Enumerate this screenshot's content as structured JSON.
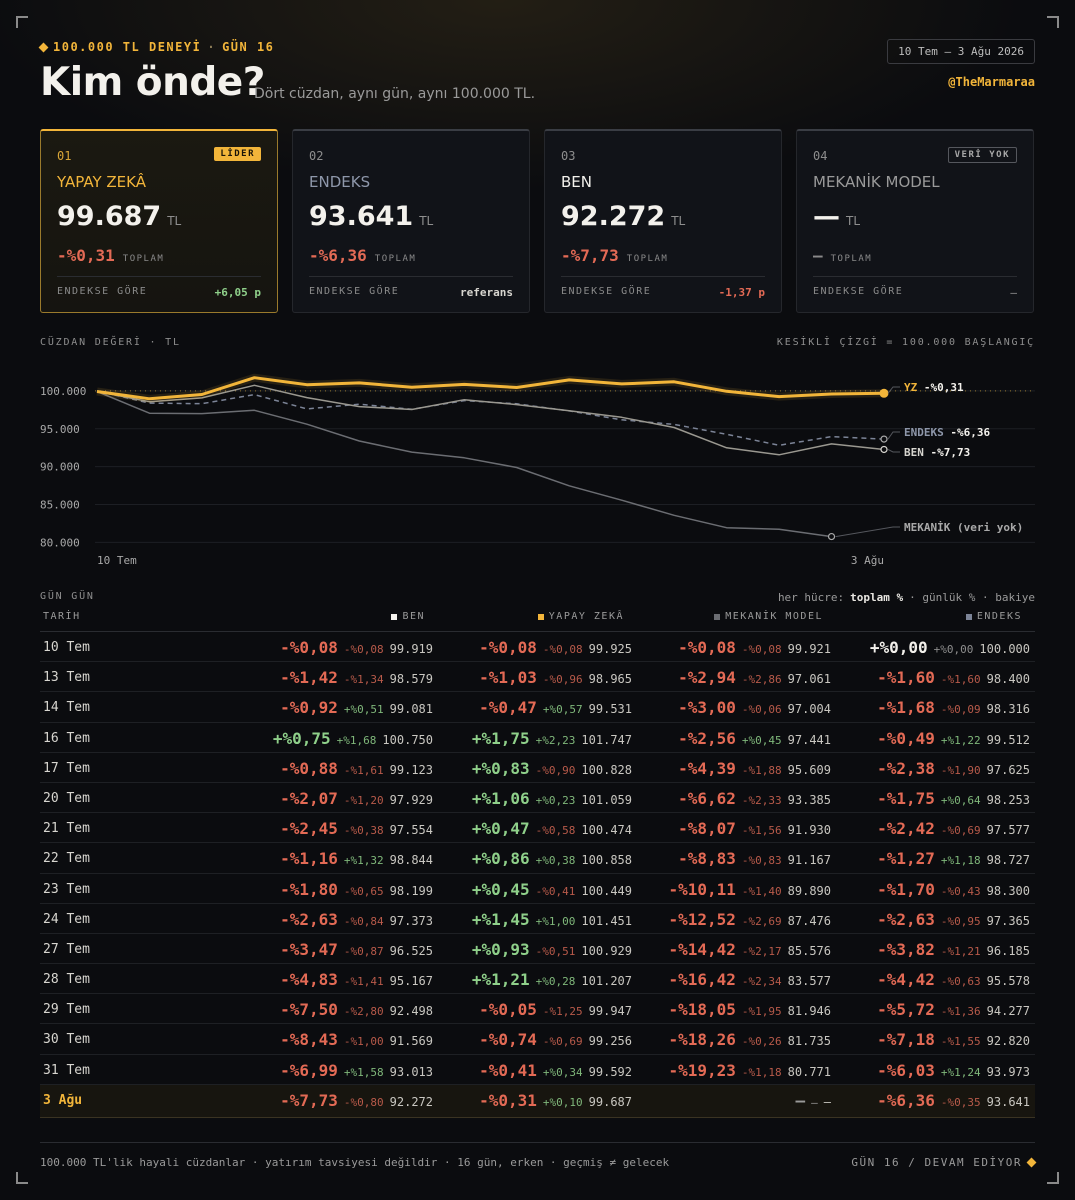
{
  "header": {
    "kicker": "100.000 TL DENEYİ",
    "kicker_sep": "·",
    "kicker_day": "GÜN 16",
    "title": "Kim önde?",
    "subtitle": "Dört cüzdan, aynı gün, aynı 100.000 TL.",
    "date_range": "10 Tem – 3 Ağu 2026",
    "handle": "@TheMarmaraa"
  },
  "colors": {
    "gold": "#f2b53a",
    "negative": "#e36a55",
    "positive": "#8fd08a",
    "index": "#7c8497",
    "me": "#d8d6d0",
    "mech": "#6b6d72"
  },
  "cards": [
    {
      "num": "01",
      "badge": "LİDER",
      "name": "YAPAY ZEKÂ",
      "value": "99.687",
      "unit": "TL",
      "pct": "-%0,31",
      "pct_label": "TOPLAM",
      "vs_label": "ENDEKSE GÖRE",
      "vs_value": "+6,05 p"
    },
    {
      "num": "02",
      "badge": "",
      "name": "ENDEKS",
      "value": "93.641",
      "unit": "TL",
      "pct": "-%6,36",
      "pct_label": "TOPLAM",
      "vs_label": "ENDEKSE GÖRE",
      "vs_value": "referans"
    },
    {
      "num": "03",
      "badge": "",
      "name": "BEN",
      "value": "92.272",
      "unit": "TL",
      "pct": "-%7,73",
      "pct_label": "TOPLAM",
      "vs_label": "ENDEKSE GÖRE",
      "vs_value": "-1,37 p"
    },
    {
      "num": "04",
      "badge": "VERİ YOK",
      "name": "MEKANİK MODEL",
      "value": "—",
      "unit": "TL",
      "pct": "—",
      "pct_label": "TOPLAM",
      "vs_label": "ENDEKSE GÖRE",
      "vs_value": "—"
    }
  ],
  "chart_section": {
    "label": "CÜZDAN DEĞERİ · TL",
    "note": "KESİKLİ ÇİZGİ = 100.000 BAŞLANGIÇ"
  },
  "chart_data": {
    "type": "line",
    "x": [
      "10 Tem",
      "13 Tem",
      "14 Tem",
      "16 Tem",
      "17 Tem",
      "20 Tem",
      "21 Tem",
      "22 Tem",
      "23 Tem",
      "24 Tem",
      "27 Tem",
      "28 Tem",
      "29 Tem",
      "30 Tem",
      "31 Tem",
      "3 Ağu"
    ],
    "x_tick_labels": [
      "10 Tem",
      "3 Ağu"
    ],
    "y_ticks": [
      "100.000",
      "95.000",
      "90.000",
      "85.000",
      "80.000"
    ],
    "y_tick_values": [
      100000,
      95000,
      90000,
      85000,
      80000
    ],
    "ylim": [
      79000,
      102500
    ],
    "baseline": 100000,
    "series": [
      {
        "key": "yz",
        "name": "YZ",
        "end_label": "-%0,31",
        "values": [
          99925,
          98965,
          99531,
          101747,
          100828,
          101059,
          100474,
          100858,
          100449,
          101451,
          100929,
          101207,
          99947,
          99256,
          99592,
          99687
        ]
      },
      {
        "key": "endeks",
        "name": "ENDEKS",
        "end_label": "-%6,36",
        "values": [
          100000,
          98400,
          98316,
          99512,
          97625,
          98253,
          97577,
          98727,
          98300,
          97365,
          96185,
          95578,
          94277,
          92820,
          93973,
          93641
        ]
      },
      {
        "key": "ben",
        "name": "BEN",
        "end_label": "-%7,73",
        "values": [
          99919,
          98579,
          99081,
          100750,
          99123,
          97929,
          97554,
          98844,
          98199,
          97373,
          96525,
          95167,
          92498,
          91569,
          93013,
          92272
        ]
      },
      {
        "key": "mekanik",
        "name": "MEKANİK",
        "end_label": "(veri yok)",
        "values": [
          99921,
          97061,
          97004,
          97441,
          95609,
          93385,
          91930,
          91167,
          89890,
          87476,
          85576,
          83577,
          81946,
          81735,
          80771,
          null
        ]
      }
    ]
  },
  "table": {
    "section_label": "GÜN GÜN",
    "legend_prefix": "her hücre:",
    "legend_total": "toplam %",
    "legend_rest": "· günlük % · bakiye",
    "columns": [
      "TARİH",
      "BEN",
      "YAPAY ZEKÂ",
      "MEKANİK MODEL",
      "ENDEKS"
    ],
    "rows": [
      {
        "date": "10 Tem",
        "cells": [
          [
            "-%0,08",
            "-%0,08",
            "99.919"
          ],
          [
            "-%0,08",
            "-%0,08",
            "99.925"
          ],
          [
            "-%0,08",
            "-%0,08",
            "99.921"
          ],
          [
            "+%0,00",
            "+%0,00",
            "100.000"
          ]
        ]
      },
      {
        "date": "13 Tem",
        "cells": [
          [
            "-%1,42",
            "-%1,34",
            "98.579"
          ],
          [
            "-%1,03",
            "-%0,96",
            "98.965"
          ],
          [
            "-%2,94",
            "-%2,86",
            "97.061"
          ],
          [
            "-%1,60",
            "-%1,60",
            "98.400"
          ]
        ]
      },
      {
        "date": "14 Tem",
        "cells": [
          [
            "-%0,92",
            "+%0,51",
            "99.081"
          ],
          [
            "-%0,47",
            "+%0,57",
            "99.531"
          ],
          [
            "-%3,00",
            "-%0,06",
            "97.004"
          ],
          [
            "-%1,68",
            "-%0,09",
            "98.316"
          ]
        ]
      },
      {
        "date": "16 Tem",
        "cells": [
          [
            "+%0,75",
            "+%1,68",
            "100.750"
          ],
          [
            "+%1,75",
            "+%2,23",
            "101.747"
          ],
          [
            "-%2,56",
            "+%0,45",
            "97.441"
          ],
          [
            "-%0,49",
            "+%1,22",
            "99.512"
          ]
        ]
      },
      {
        "date": "17 Tem",
        "cells": [
          [
            "-%0,88",
            "-%1,61",
            "99.123"
          ],
          [
            "+%0,83",
            "-%0,90",
            "100.828"
          ],
          [
            "-%4,39",
            "-%1,88",
            "95.609"
          ],
          [
            "-%2,38",
            "-%1,90",
            "97.625"
          ]
        ]
      },
      {
        "date": "20 Tem",
        "cells": [
          [
            "-%2,07",
            "-%1,20",
            "97.929"
          ],
          [
            "+%1,06",
            "+%0,23",
            "101.059"
          ],
          [
            "-%6,62",
            "-%2,33",
            "93.385"
          ],
          [
            "-%1,75",
            "+%0,64",
            "98.253"
          ]
        ]
      },
      {
        "date": "21 Tem",
        "cells": [
          [
            "-%2,45",
            "-%0,38",
            "97.554"
          ],
          [
            "+%0,47",
            "-%0,58",
            "100.474"
          ],
          [
            "-%8,07",
            "-%1,56",
            "91.930"
          ],
          [
            "-%2,42",
            "-%0,69",
            "97.577"
          ]
        ]
      },
      {
        "date": "22 Tem",
        "cells": [
          [
            "-%1,16",
            "+%1,32",
            "98.844"
          ],
          [
            "+%0,86",
            "+%0,38",
            "100.858"
          ],
          [
            "-%8,83",
            "-%0,83",
            "91.167"
          ],
          [
            "-%1,27",
            "+%1,18",
            "98.727"
          ]
        ]
      },
      {
        "date": "23 Tem",
        "cells": [
          [
            "-%1,80",
            "-%0,65",
            "98.199"
          ],
          [
            "+%0,45",
            "-%0,41",
            "100.449"
          ],
          [
            "-%10,11",
            "-%1,40",
            "89.890"
          ],
          [
            "-%1,70",
            "-%0,43",
            "98.300"
          ]
        ]
      },
      {
        "date": "24 Tem",
        "cells": [
          [
            "-%2,63",
            "-%0,84",
            "97.373"
          ],
          [
            "+%1,45",
            "+%1,00",
            "101.451"
          ],
          [
            "-%12,52",
            "-%2,69",
            "87.476"
          ],
          [
            "-%2,63",
            "-%0,95",
            "97.365"
          ]
        ]
      },
      {
        "date": "27 Tem",
        "cells": [
          [
            "-%3,47",
            "-%0,87",
            "96.525"
          ],
          [
            "+%0,93",
            "-%0,51",
            "100.929"
          ],
          [
            "-%14,42",
            "-%2,17",
            "85.576"
          ],
          [
            "-%3,82",
            "-%1,21",
            "96.185"
          ]
        ]
      },
      {
        "date": "28 Tem",
        "cells": [
          [
            "-%4,83",
            "-%1,41",
            "95.167"
          ],
          [
            "+%1,21",
            "+%0,28",
            "101.207"
          ],
          [
            "-%16,42",
            "-%2,34",
            "83.577"
          ],
          [
            "-%4,42",
            "-%0,63",
            "95.578"
          ]
        ]
      },
      {
        "date": "29 Tem",
        "cells": [
          [
            "-%7,50",
            "-%2,80",
            "92.498"
          ],
          [
            "-%0,05",
            "-%1,25",
            "99.947"
          ],
          [
            "-%18,05",
            "-%1,95",
            "81.946"
          ],
          [
            "-%5,72",
            "-%1,36",
            "94.277"
          ]
        ]
      },
      {
        "date": "30 Tem",
        "cells": [
          [
            "-%8,43",
            "-%1,00",
            "91.569"
          ],
          [
            "-%0,74",
            "-%0,69",
            "99.256"
          ],
          [
            "-%18,26",
            "-%0,26",
            "81.735"
          ],
          [
            "-%7,18",
            "-%1,55",
            "92.820"
          ]
        ]
      },
      {
        "date": "31 Tem",
        "cells": [
          [
            "-%6,99",
            "+%1,58",
            "93.013"
          ],
          [
            "-%0,41",
            "+%0,34",
            "99.592"
          ],
          [
            "-%19,23",
            "-%1,18",
            "80.771"
          ],
          [
            "-%6,03",
            "+%1,24",
            "93.973"
          ]
        ]
      },
      {
        "date": "3 Ağu",
        "cells": [
          [
            "-%7,73",
            "-%0,80",
            "92.272"
          ],
          [
            "-%0,31",
            "+%0,10",
            "99.687"
          ],
          [
            "—",
            "—",
            "—"
          ],
          [
            "-%6,36",
            "-%0,35",
            "93.641"
          ]
        ]
      }
    ]
  },
  "footer": {
    "left": "100.000 TL'lik hayali cüzdanlar · yatırım tavsiyesi değildir · 16 gün, erken · geçmiş ≠ gelecek",
    "right": "GÜN 16 / DEVAM EDİYOR"
  }
}
